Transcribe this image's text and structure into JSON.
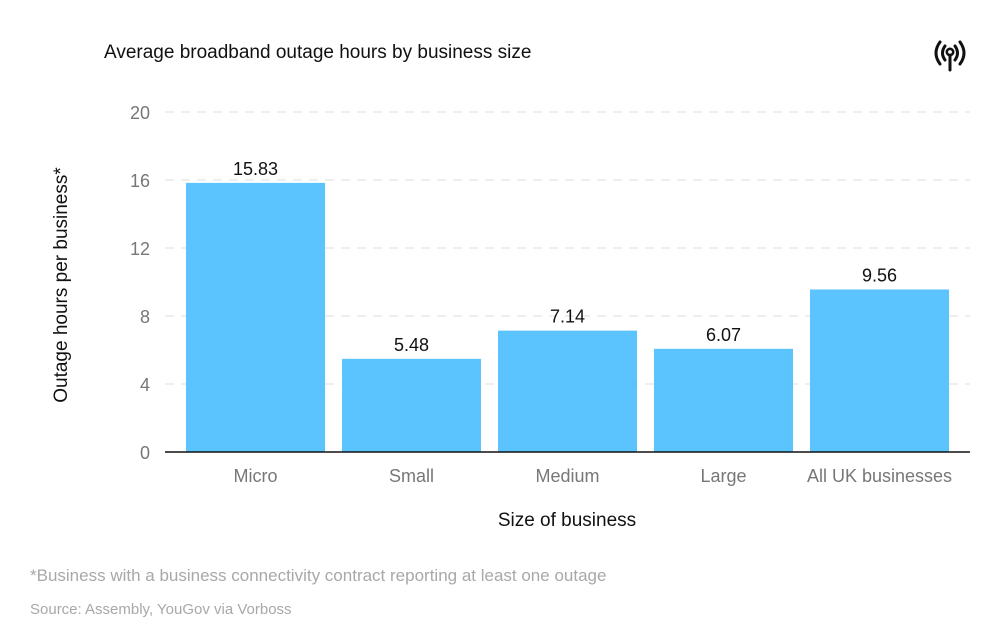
{
  "chart_data": {
    "type": "bar",
    "title": "Average broadband outage hours by business size",
    "xlabel": "Size of business",
    "ylabel": "Outage hours per business*",
    "categories": [
      "Micro",
      "Small",
      "Medium",
      "Large",
      "All UK businesses"
    ],
    "values": [
      15.83,
      5.48,
      7.14,
      6.07,
      9.56
    ],
    "value_labels": [
      "15.83",
      "5.48",
      "7.14",
      "6.07",
      "9.56"
    ],
    "ylim": [
      0,
      20
    ],
    "yticks": [
      "0",
      "4",
      "8",
      "12",
      "16",
      "20"
    ],
    "grid": true,
    "bar_color": "#5bc3fd"
  },
  "footnote": "*Business with a business connectivity contract reporting at least one outage",
  "source": "Source: Assembly, YouGov via Vorboss",
  "icon": "broadcast-antenna-icon"
}
